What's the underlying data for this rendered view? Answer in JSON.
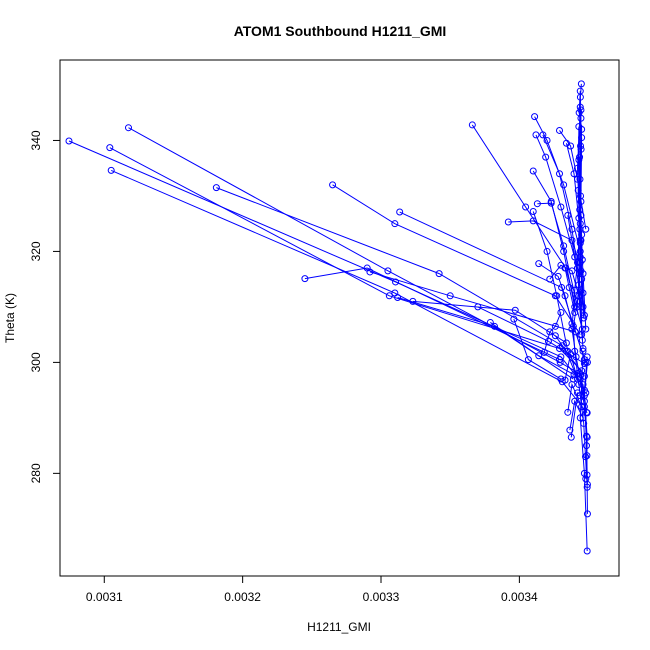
{
  "chart_data": {
    "type": "scatter",
    "title": "ATOM1 Southbound H1211_GMI",
    "xlabel": "H1211_GMI",
    "ylabel": "Theta (K)",
    "xlim": [
      0.003068,
      0.003472
    ],
    "ylim": [
      261.5,
      354.5
    ],
    "x_ticks": [
      {
        "value": 0.0031,
        "label": "0.0031"
      },
      {
        "value": 0.0032,
        "label": "0.0032"
      },
      {
        "value": 0.0033,
        "label": "0.0033"
      },
      {
        "value": 0.0034,
        "label": "0.0034"
      }
    ],
    "y_ticks": [
      {
        "value": 280,
        "label": "280"
      },
      {
        "value": 300,
        "label": "300"
      },
      {
        "value": 320,
        "label": "320"
      },
      {
        "value": 340,
        "label": "340"
      }
    ],
    "grid": false,
    "color": "#0000ff",
    "marker": "open-circle",
    "series": [
      {
        "points": [
          [
            0.0034448,
            350.2
          ],
          [
            0.0034441,
            347.8
          ],
          [
            0.0034445,
            344.0
          ],
          [
            0.0034442,
            339.0
          ],
          [
            0.0034438,
            333.0
          ],
          [
            0.0034436,
            327.5
          ],
          [
            0.003444,
            322.0
          ],
          [
            0.0034435,
            316.0
          ],
          [
            0.003442,
            311.0
          ],
          [
            0.003439,
            306.5
          ],
          [
            0.00344,
            302.0
          ],
          [
            0.003442,
            298.0
          ],
          [
            0.003444,
            294.0
          ],
          [
            0.0034465,
            289.0
          ],
          [
            0.0034478,
            283.0
          ],
          [
            0.003449,
            277.5
          ],
          [
            0.0034492,
            272.7
          ]
        ]
      },
      {
        "points": [
          [
            0.003444,
            348.9
          ],
          [
            0.0034432,
            345.0
          ],
          [
            0.003445,
            342.0
          ],
          [
            0.0034446,
            338.4
          ],
          [
            0.0034442,
            330.0
          ],
          [
            0.0034437,
            324.0
          ],
          [
            0.003442,
            318.0
          ],
          [
            0.00344,
            313.0
          ],
          [
            0.003438,
            306.0
          ],
          [
            0.003441,
            301.0
          ],
          [
            0.003444,
            297.0
          ],
          [
            0.003447,
            292.0
          ],
          [
            0.0034485,
            286.7
          ],
          [
            0.0034489,
            279.7
          ]
        ]
      },
      {
        "points": [
          [
            0.0031175,
            342.3
          ],
          [
            0.003305,
            316.5
          ],
          [
            0.0034295,
            300.0
          ],
          [
            0.0034445,
            297.8
          ],
          [
            0.003447,
            293.0
          ]
        ]
      },
      {
        "points": [
          [
            0.0030745,
            339.9
          ],
          [
            0.0033105,
            314.5
          ],
          [
            0.00343,
            301.0
          ],
          [
            0.003446,
            296.0
          ],
          [
            0.0034485,
            291.0
          ]
        ]
      },
      {
        "points": [
          [
            0.003104,
            338.7
          ],
          [
            0.003306,
            312.0
          ],
          [
            0.003429,
            302.5
          ],
          [
            0.003445,
            298.5
          ]
        ]
      },
      {
        "points": [
          [
            0.003105,
            334.6
          ],
          [
            0.00331,
            312.5
          ],
          [
            0.003431,
            296.5
          ],
          [
            0.003449,
            290.9
          ]
        ]
      },
      {
        "points": [
          [
            0.003181,
            331.5
          ],
          [
            0.003342,
            316.0
          ],
          [
            0.003431,
            303.0
          ],
          [
            0.003447,
            297.5
          ]
        ]
      },
      {
        "points": [
          [
            0.003265,
            332.0
          ],
          [
            0.00331,
            325.0
          ],
          [
            0.003426,
            312.0
          ],
          [
            0.003444,
            305.0
          ]
        ]
      },
      {
        "points": [
          [
            0.0033135,
            327.1
          ],
          [
            0.0034305,
            313.5
          ],
          [
            0.003447,
            300.5
          ]
        ]
      },
      {
        "points": [
          [
            0.003366,
            342.8
          ],
          [
            0.0034045,
            328.0
          ],
          [
            0.0034335,
            317.0
          ],
          [
            0.0034455,
            306.0
          ]
        ]
      },
      {
        "points": [
          [
            0.003245,
            315.1
          ],
          [
            0.00329,
            317.0
          ],
          [
            0.003429,
            300.5
          ]
        ]
      },
      {
        "points": [
          [
            0.003292,
            316.3
          ],
          [
            0.00335,
            312.0
          ],
          [
            0.0034405,
            305.5
          ],
          [
            0.003448,
            300.0
          ]
        ]
      },
      {
        "points": [
          [
            0.003312,
            311.7
          ],
          [
            0.003382,
            306.5
          ],
          [
            0.003439,
            297.0
          ]
        ]
      },
      {
        "points": [
          [
            0.003323,
            311.0
          ],
          [
            0.003397,
            309.4
          ],
          [
            0.003434,
            303.5
          ]
        ]
      },
      {
        "points": [
          [
            0.00337,
            310.0
          ],
          [
            0.003421,
            303.8
          ],
          [
            0.003447,
            299.8
          ]
        ]
      },
      {
        "points": [
          [
            0.003379,
            307.2
          ],
          [
            0.003414,
            301.2
          ],
          [
            0.0034395,
            297.8
          ]
        ]
      },
      {
        "points": [
          [
            0.003396,
            307.8
          ],
          [
            0.0034065,
            300.5
          ],
          [
            0.00343,
            297.0
          ]
        ]
      },
      {
        "points": [
          [
            0.003392,
            325.3
          ],
          [
            0.00341,
            325.5
          ],
          [
            0.003438,
            322.0
          ],
          [
            0.003446,
            316.0
          ]
        ]
      },
      {
        "points": [
          [
            0.003411,
            344.3
          ],
          [
            0.00342,
            340.0
          ],
          [
            0.003432,
            332.0
          ],
          [
            0.003444,
            320.0
          ]
        ]
      },
      {
        "points": [
          [
            0.003412,
            341.0
          ],
          [
            0.003419,
            337.0
          ],
          [
            0.00343,
            328.0
          ],
          [
            0.003442,
            317.0
          ]
        ]
      },
      {
        "points": [
          [
            0.003417,
            341.0
          ],
          [
            0.003429,
            334.0
          ],
          [
            0.003438,
            324.0
          ],
          [
            0.003446,
            310.0
          ]
        ]
      },
      {
        "points": [
          [
            0.003429,
            341.8
          ],
          [
            0.003437,
            339.0
          ],
          [
            0.003442,
            333.0
          ],
          [
            0.003448,
            324.0
          ]
        ]
      },
      {
        "points": [
          [
            0.003434,
            339.5
          ],
          [
            0.0034395,
            334.0
          ],
          [
            0.0034445,
            322.0
          ]
        ]
      },
      {
        "points": [
          [
            0.00341,
            334.5
          ],
          [
            0.003423,
            329.0
          ],
          [
            0.003432,
            320.0
          ],
          [
            0.00344,
            310.0
          ]
        ]
      },
      {
        "points": [
          [
            0.00341,
            327.2
          ],
          [
            0.00342,
            320.0
          ],
          [
            0.003427,
            312.0
          ],
          [
            0.003435,
            302.0
          ]
        ]
      },
      {
        "points": [
          [
            0.003413,
            328.6
          ],
          [
            0.003423,
            328.7
          ],
          [
            0.003432,
            321.0
          ],
          [
            0.003442,
            310.0
          ]
        ]
      },
      {
        "points": [
          [
            0.003435,
            326.5
          ],
          [
            0.00344,
            319.0
          ],
          [
            0.003445,
            310.0
          ]
        ]
      },
      {
        "points": [
          [
            0.003414,
            317.8
          ],
          [
            0.003428,
            315.5
          ],
          [
            0.003433,
            312.0
          ],
          [
            0.003438,
            307.0
          ]
        ]
      },
      {
        "points": [
          [
            0.003422,
            315.0
          ],
          [
            0.00343,
            317.5
          ],
          [
            0.003438,
            316.5
          ],
          [
            0.003444,
            311.0
          ]
        ]
      },
      {
        "points": [
          [
            0.003418,
            301.8
          ],
          [
            0.003422,
            305.5
          ],
          [
            0.003426,
            306.5
          ],
          [
            0.00343,
            309.0
          ]
        ]
      },
      {
        "points": [
          [
            0.003426,
            304.8
          ],
          [
            0.003434,
            302.0
          ],
          [
            0.003442,
            297.0
          ]
        ]
      },
      {
        "points": [
          [
            0.003433,
            296.8
          ],
          [
            0.003437,
            301.5
          ],
          [
            0.003443,
            296.0
          ]
        ]
      },
      {
        "points": [
          [
            0.003435,
            291.0
          ],
          [
            0.003438,
            296.0
          ],
          [
            0.003445,
            292.0
          ]
        ]
      },
      {
        "points": [
          [
            0.0034365,
            287.8
          ],
          [
            0.00344,
            293.0
          ],
          [
            0.003446,
            290.0
          ]
        ]
      },
      {
        "points": [
          [
            0.0034375,
            286.5
          ],
          [
            0.003442,
            294.5
          ],
          [
            0.003448,
            294.5
          ]
        ]
      },
      {
        "points": [
          [
            0.003449,
            301.0
          ],
          [
            0.003447,
            295.0
          ],
          [
            0.0034485,
            285.0
          ],
          [
            0.0034492,
            278.0
          ]
        ]
      },
      {
        "points": [
          [
            0.0034492,
            300.0
          ],
          [
            0.003447,
            294.0
          ],
          [
            0.003449,
            286.5
          ],
          [
            0.0034488,
            283.2
          ],
          [
            0.003448,
            279.0
          ]
        ]
      },
      {
        "points": [
          [
            0.003446,
            302.0
          ],
          [
            0.003444,
            290.0
          ],
          [
            0.003447,
            280.0
          ],
          [
            0.003449,
            266.0
          ]
        ]
      },
      {
        "points": [
          [
            0.003444,
            346.0
          ],
          [
            0.003442,
            335.0
          ],
          [
            0.003444,
            325.0
          ],
          [
            0.003445,
            315.0
          ],
          [
            0.003445,
            305.0
          ]
        ]
      },
      {
        "points": [
          [
            0.0034445,
            345.5
          ],
          [
            0.003443,
            336.5
          ],
          [
            0.0034445,
            326.5
          ],
          [
            0.0034455,
            318.5
          ],
          [
            0.003448,
            306.0
          ]
        ]
      },
      {
        "points": [
          [
            0.003443,
            342.5
          ],
          [
            0.0034425,
            331.0
          ],
          [
            0.003444,
            321.5
          ],
          [
            0.003446,
            312.5
          ]
        ]
      },
      {
        "points": [
          [
            0.003445,
            340.5
          ],
          [
            0.0034445,
            329.0
          ],
          [
            0.003444,
            318.0
          ],
          [
            0.0034465,
            308.0
          ]
        ]
      },
      {
        "points": [
          [
            0.0034435,
            337.0
          ],
          [
            0.003443,
            326.0
          ],
          [
            0.003443,
            314.0
          ],
          [
            0.003446,
            302.5
          ]
        ]
      },
      {
        "points": [
          [
            0.003445,
            323.0
          ],
          [
            0.0034445,
            316.5
          ],
          [
            0.003447,
            308.5
          ]
        ]
      },
      {
        "points": [
          [
            0.003444,
            319.0
          ],
          [
            0.003443,
            312.0
          ],
          [
            0.0034455,
            304.0
          ]
        ]
      },
      {
        "points": [
          [
            0.003433,
            317.0
          ],
          [
            0.003436,
            313.5
          ],
          [
            0.00344,
            309.0
          ]
        ]
      }
    ]
  }
}
